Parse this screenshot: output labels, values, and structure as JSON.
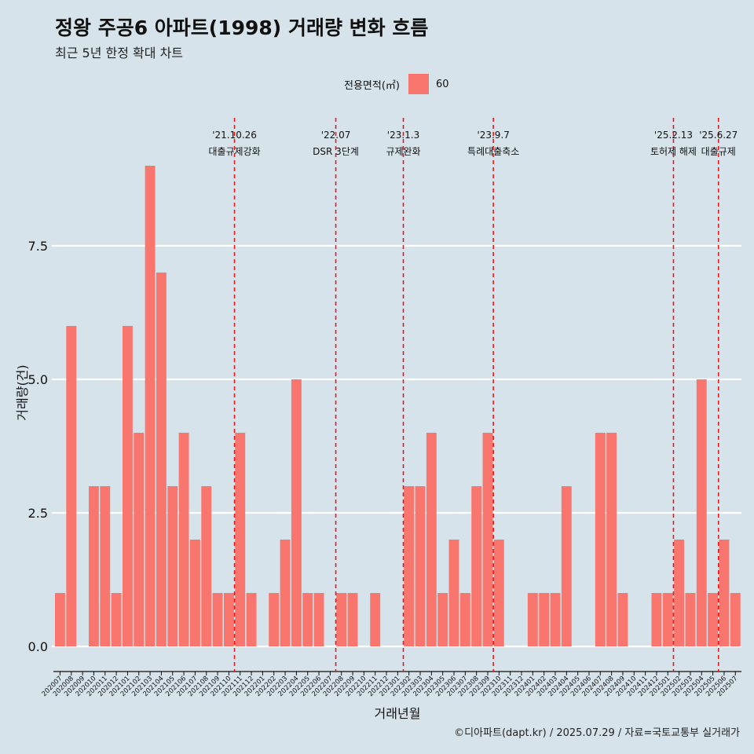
{
  "title": "정왕 주공6 아파트(1998) 거래량 변화 흐름",
  "subtitle": "최근 5년 한정 확대 차트",
  "legend": {
    "title": "전용면적(㎡)",
    "label": "60",
    "color": "#f8766d"
  },
  "caption": "©디아파트(dapt.kr) / 2025.07.29 / 자료=국토교통부 실거래가",
  "chart_data": {
    "type": "bar",
    "xlabel": "거래년월",
    "ylabel": "거래량(건)",
    "ylim": [
      0,
      9
    ],
    "yticks": [
      0,
      2.5,
      5,
      7.5
    ],
    "ytick_labels": [
      "0.0",
      "2.5",
      "5.0",
      "7.5"
    ],
    "grid": "horizontal",
    "legend_position": "top",
    "series": [
      {
        "name": "60",
        "color": "#f8766d",
        "categories": [
          "202007",
          "202008",
          "202009",
          "202010",
          "202011",
          "202012",
          "202101",
          "202102",
          "202103",
          "202104",
          "202105",
          "202106",
          "202107",
          "202108",
          "202109",
          "202110",
          "202111",
          "202112",
          "202201",
          "202202",
          "202203",
          "202204",
          "202205",
          "202206",
          "202207",
          "202208",
          "202209",
          "202210",
          "202211",
          "202212",
          "202301",
          "202302",
          "202303",
          "202304",
          "202305",
          "202306",
          "202307",
          "202308",
          "202309",
          "202310",
          "202311",
          "202312",
          "202401",
          "202402",
          "202403",
          "202404",
          "202405",
          "202406",
          "202407",
          "202408",
          "202409",
          "202410",
          "202411",
          "202412",
          "202501",
          "202502",
          "202503",
          "202504",
          "202505",
          "202506",
          "202507"
        ],
        "values": [
          1,
          6,
          0,
          3,
          3,
          1,
          6,
          4,
          9,
          7,
          3,
          4,
          2,
          3,
          1,
          1,
          4,
          1,
          0,
          1,
          2,
          5,
          1,
          1,
          0,
          1,
          1,
          0,
          1,
          0,
          0,
          3,
          3,
          4,
          1,
          2,
          1,
          3,
          4,
          2,
          0,
          0,
          1,
          1,
          1,
          3,
          0,
          0,
          4,
          4,
          1,
          0,
          0,
          1,
          1,
          2,
          1,
          5,
          1,
          2,
          1
        ]
      }
    ],
    "events": [
      {
        "date": "'21.10.26",
        "label": "대출규제강화",
        "position": 15.5
      },
      {
        "date": "'22.07",
        "label": "DSR 3단계",
        "position": 24.5
      },
      {
        "date": "'23.1.3",
        "label": "규제완화",
        "position": 30.5
      },
      {
        "date": "'23.9.7",
        "label": "특례대출축소",
        "position": 38.5
      },
      {
        "date": "'25.2.13",
        "label": "토허제 해제",
        "position": 54.5
      },
      {
        "date": "'25.6.27",
        "label": "대출규제",
        "position": 58.5
      }
    ]
  }
}
